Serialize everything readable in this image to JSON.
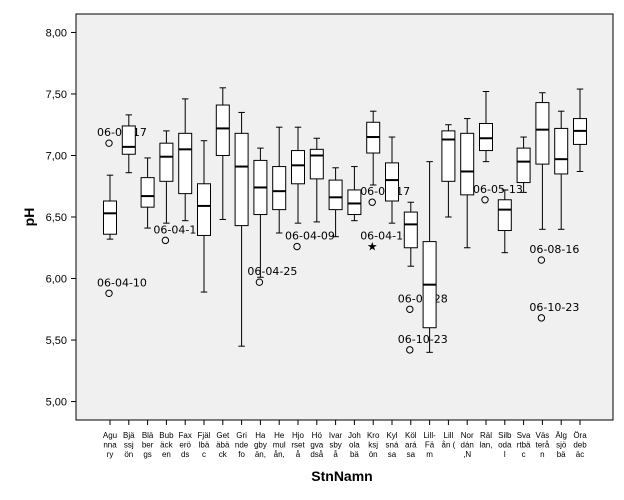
{
  "chart_data": {
    "type": "boxplot",
    "title": "",
    "xlabel": "StnNamn",
    "ylabel": "pH",
    "ylim": [
      4.85,
      8.15
    ],
    "yticks": [
      "5,00",
      "5,50",
      "6,00",
      "6,50",
      "7,00",
      "7,50",
      "8,00"
    ],
    "ytick_values": [
      5.0,
      5.5,
      6.0,
      6.5,
      7.0,
      7.5,
      8.0
    ],
    "grid": false,
    "plot_background": "#f0f0f0",
    "box_fill": "#ffffff",
    "categories": [
      {
        "name": [
          "Agu",
          "nna",
          "ry"
        ],
        "whislo": 6.32,
        "q1": 6.36,
        "med": 6.53,
        "q3": 6.63,
        "whishi": 6.84,
        "outliers": [
          {
            "y": 7.1,
            "kind": "circle",
            "label": "06-07-17"
          },
          {
            "y": 5.88,
            "kind": "circle",
            "label": "06-04-10"
          }
        ]
      },
      {
        "name": [
          "Bjä",
          "ssj",
          "ön"
        ],
        "whislo": 6.86,
        "q1": 7.01,
        "med": 7.07,
        "q3": 7.24,
        "whishi": 7.33,
        "outliers": []
      },
      {
        "name": [
          "Blä",
          "ber",
          "gs"
        ],
        "whislo": 6.41,
        "q1": 6.58,
        "med": 6.67,
        "q3": 6.82,
        "whishi": 6.98,
        "outliers": []
      },
      {
        "name": [
          "Bub",
          "äck",
          "en"
        ],
        "whislo": 6.45,
        "q1": 6.79,
        "med": 6.99,
        "q3": 7.1,
        "whishi": 7.2,
        "outliers": [
          {
            "y": 6.31,
            "kind": "circle",
            "label": "06-04-17"
          }
        ]
      },
      {
        "name": [
          "Fax",
          "erö",
          "ds"
        ],
        "whislo": 6.47,
        "q1": 6.69,
        "med": 7.05,
        "q3": 7.18,
        "whishi": 7.46,
        "outliers": []
      },
      {
        "name": [
          "Fjäl",
          "lbä",
          "c"
        ],
        "whislo": 5.89,
        "q1": 6.35,
        "med": 6.59,
        "q3": 6.77,
        "whishi": 7.12,
        "outliers": []
      },
      {
        "name": [
          "Get",
          "äbä",
          "ck"
        ],
        "whislo": 6.48,
        "q1": 7.0,
        "med": 7.22,
        "q3": 7.41,
        "whishi": 7.55,
        "outliers": []
      },
      {
        "name": [
          "Gri",
          "nde",
          "fo"
        ],
        "whislo": 5.45,
        "q1": 6.43,
        "med": 6.91,
        "q3": 7.18,
        "whishi": 7.35,
        "outliers": []
      },
      {
        "name": [
          "Ha",
          "gby",
          "än,"
        ],
        "whislo": 6.01,
        "q1": 6.52,
        "med": 6.74,
        "q3": 6.96,
        "whishi": 7.06,
        "outliers": [
          {
            "y": 5.97,
            "kind": "circle",
            "label": "06-04-25"
          }
        ]
      },
      {
        "name": [
          "He",
          "mul",
          "ån,"
        ],
        "whislo": 6.37,
        "q1": 6.56,
        "med": 6.71,
        "q3": 6.91,
        "whishi": 7.23,
        "outliers": []
      },
      {
        "name": [
          "Hjo",
          "rset",
          "å"
        ],
        "whislo": 6.45,
        "q1": 6.77,
        "med": 6.92,
        "q3": 7.04,
        "whishi": 7.23,
        "outliers": [
          {
            "y": 6.26,
            "kind": "circle",
            "label": "06-04-09"
          }
        ]
      },
      {
        "name": [
          "Hö",
          "gva",
          "dså"
        ],
        "whislo": 6.46,
        "q1": 6.81,
        "med": 7.0,
        "q3": 7.05,
        "whishi": 7.14,
        "outliers": []
      },
      {
        "name": [
          "Ivar",
          "sby",
          "å"
        ],
        "whislo": 6.34,
        "q1": 6.56,
        "med": 6.66,
        "q3": 6.8,
        "whishi": 6.9,
        "outliers": []
      },
      {
        "name": [
          "Joh",
          "ola",
          "bä"
        ],
        "whislo": 6.47,
        "q1": 6.52,
        "med": 6.61,
        "q3": 6.72,
        "whishi": 6.91,
        "outliers": []
      },
      {
        "name": [
          "Kro",
          "ksj",
          "ön"
        ],
        "whislo": 6.76,
        "q1": 7.02,
        "med": 7.15,
        "q3": 7.27,
        "whishi": 7.36,
        "outliers": [
          {
            "y": 6.62,
            "kind": "circle",
            "label": "06-01-17"
          },
          {
            "y": 6.26,
            "kind": "star",
            "label": "06-04-10"
          }
        ]
      },
      {
        "name": [
          "Kyl",
          "sná",
          "sa"
        ],
        "whislo": 6.45,
        "q1": 6.63,
        "med": 6.8,
        "q3": 6.94,
        "whishi": 7.15,
        "outliers": []
      },
      {
        "name": [
          "Köl",
          "ará",
          "sa"
        ],
        "whislo": 6.1,
        "q1": 6.25,
        "med": 6.44,
        "q3": 6.54,
        "whishi": 6.62,
        "outliers": [
          {
            "y": 5.75,
            "kind": "circle",
            "label": "06-08-28"
          },
          {
            "y": 5.42,
            "kind": "circle",
            "label": "06-10-23"
          }
        ]
      },
      {
        "name": [
          "Lill-",
          "Fä",
          "m"
        ],
        "whislo": 5.4,
        "q1": 5.6,
        "med": 5.95,
        "q3": 6.3,
        "whishi": 6.95,
        "outliers": []
      },
      {
        "name": [
          "Lill",
          "ån (",
          ""
        ],
        "whislo": 6.5,
        "q1": 6.79,
        "med": 7.13,
        "q3": 7.2,
        "whishi": 7.25,
        "outliers": []
      },
      {
        "name": [
          "Nor",
          "dán",
          ",N"
        ],
        "whislo": 6.25,
        "q1": 6.68,
        "med": 6.87,
        "q3": 7.18,
        "whishi": 7.3,
        "outliers": []
      },
      {
        "name": [
          "Räl",
          "lan,",
          ""
        ],
        "whislo": 6.95,
        "q1": 7.04,
        "med": 7.14,
        "q3": 7.26,
        "whishi": 7.52,
        "outliers": [
          {
            "y": 6.64,
            "kind": "circle",
            "label": "06-05-13"
          }
        ]
      },
      {
        "name": [
          "Silb",
          "oda",
          "l"
        ],
        "whislo": 6.21,
        "q1": 6.39,
        "med": 6.56,
        "q3": 6.64,
        "whishi": 6.72,
        "outliers": []
      },
      {
        "name": [
          "Sva",
          "rtbä",
          "c"
        ],
        "whislo": 6.7,
        "q1": 6.78,
        "med": 6.95,
        "q3": 7.06,
        "whishi": 7.15,
        "outliers": []
      },
      {
        "name": [
          "Väs",
          "terå",
          "n"
        ],
        "whislo": 6.4,
        "q1": 6.93,
        "med": 7.21,
        "q3": 7.43,
        "whishi": 7.51,
        "outliers": [
          {
            "y": 6.15,
            "kind": "circle",
            "label": "06-08-16"
          },
          {
            "y": 5.68,
            "kind": "circle",
            "label": "06-10-23"
          }
        ]
      },
      {
        "name": [
          "Älg",
          "sjö",
          "bä"
        ],
        "whislo": 6.4,
        "q1": 6.85,
        "med": 6.97,
        "q3": 7.22,
        "whishi": 7.36,
        "outliers": []
      },
      {
        "name": [
          "Öra",
          "deb",
          "äc"
        ],
        "whislo": 6.87,
        "q1": 7.09,
        "med": 7.2,
        "q3": 7.3,
        "whishi": 7.54,
        "outliers": []
      }
    ]
  }
}
